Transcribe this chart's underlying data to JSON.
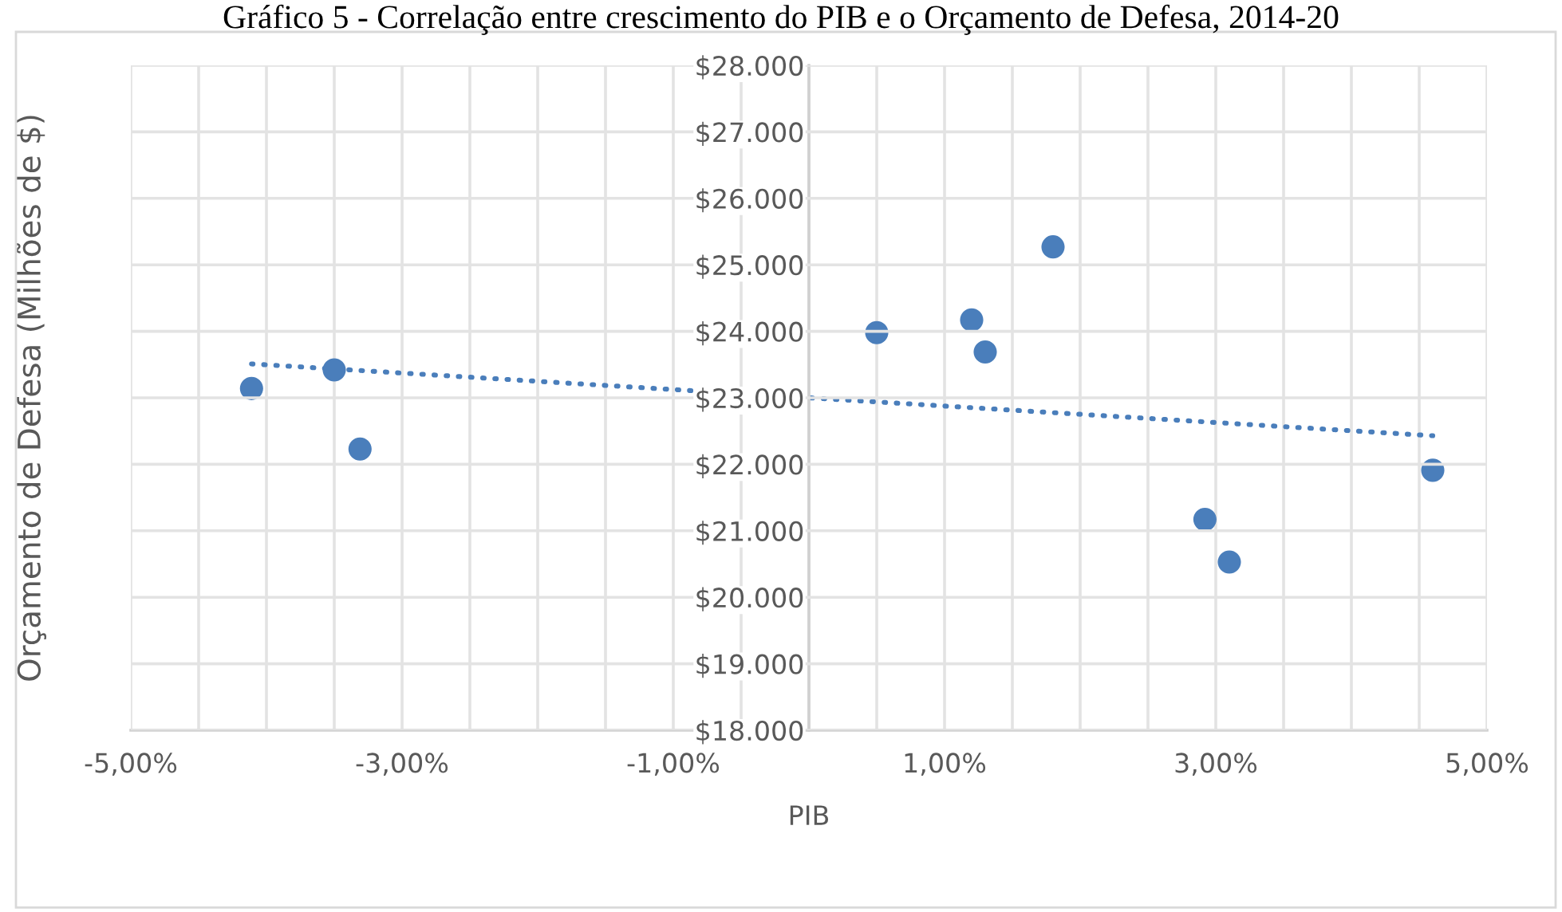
{
  "chart_data": {
    "type": "scatter",
    "title": "Gráfico 5 - Correlação entre crescimento do PIB e o Orçamento de Defesa, 2014-20",
    "xlabel": "PIB",
    "ylabel": "Orçamento de Defesa (Milhões de $)",
    "series": [
      {
        "color": "#4a7ebb",
        "marker": "circle",
        "x": [
          -4.11,
          -3.5,
          -3.31,
          0.5,
          1.2,
          1.3,
          1.8,
          2.92,
          3.1,
          4.6
        ],
        "values": [
          23140,
          23420,
          22230,
          23980,
          24170,
          23690,
          25270,
          21170,
          20530,
          21910
        ]
      },
      {
        "type": "line",
        "color": "#4a7ebb",
        "line_style": "dotted",
        "marker": "none",
        "x": [
          -4.11,
          4.6
        ],
        "values": [
          23510,
          22430
        ]
      }
    ],
    "xlim": [
      -5,
      5
    ],
    "ylim": [
      18000,
      28000
    ],
    "xticks": [
      {
        "value": -5,
        "label": "-5,00%"
      },
      {
        "value": -4.5,
        "label": null
      },
      {
        "value": -4,
        "label": null
      },
      {
        "value": -3.5,
        "label": null
      },
      {
        "value": -3,
        "label": "-3,00%"
      },
      {
        "value": -2.5,
        "label": null
      },
      {
        "value": -2,
        "label": null
      },
      {
        "value": -1.5,
        "label": null
      },
      {
        "value": -1,
        "label": "-1,00%"
      },
      {
        "value": -0.5,
        "label": null
      },
      {
        "value": 0,
        "label": null
      },
      {
        "value": 0.5,
        "label": null
      },
      {
        "value": 1,
        "label": "1,00%"
      },
      {
        "value": 1.5,
        "label": null
      },
      {
        "value": 2,
        "label": null
      },
      {
        "value": 2.5,
        "label": null
      },
      {
        "value": 3,
        "label": "3,00%"
      },
      {
        "value": 3.5,
        "label": null
      },
      {
        "value": 4,
        "label": null
      },
      {
        "value": 4.5,
        "label": null
      },
      {
        "value": 5,
        "label": "5,00%"
      }
    ],
    "yticks": [
      {
        "value": 18000,
        "label": "$18.000"
      },
      {
        "value": 19000,
        "label": "$19.000"
      },
      {
        "value": 20000,
        "label": "$20.000"
      },
      {
        "value": 21000,
        "label": "$21.000"
      },
      {
        "value": 22000,
        "label": "$22.000"
      },
      {
        "value": 23000,
        "label": "$23.000"
      },
      {
        "value": 24000,
        "label": "$24.000"
      },
      {
        "value": 25000,
        "label": "$25.000"
      },
      {
        "value": 26000,
        "label": "$26.000"
      },
      {
        "value": 27000,
        "label": "$27.000"
      },
      {
        "value": 28000,
        "label": "$28.000"
      }
    ],
    "grid": true,
    "legend": false
  }
}
